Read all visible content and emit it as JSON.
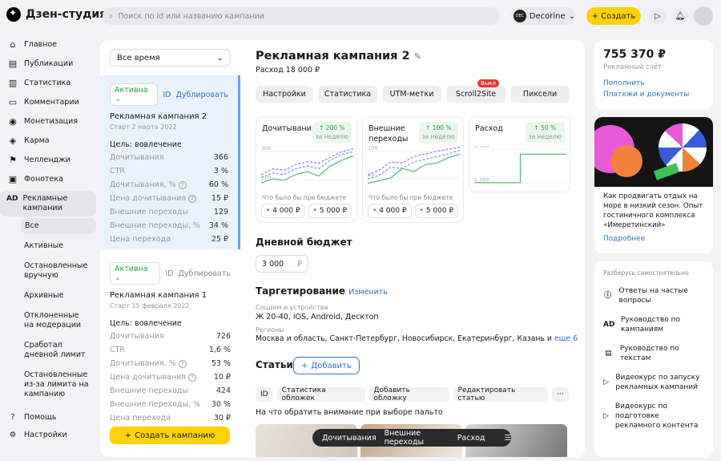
{
  "header": {
    "logo": "Дзен-студия",
    "search_placeholder": "Поиск по id или названию кампании",
    "account": "Decorine",
    "account_avatar": "DEC",
    "create": "Создать"
  },
  "nav": {
    "items": [
      {
        "icon": "home",
        "label": "Главное"
      },
      {
        "icon": "publications",
        "label": "Публикации"
      },
      {
        "icon": "stats",
        "label": "Статистика"
      },
      {
        "icon": "comments",
        "label": "Комментарии"
      },
      {
        "icon": "money",
        "label": "Монетизация"
      },
      {
        "icon": "karma",
        "label": "Карма"
      },
      {
        "icon": "flag",
        "label": "Челленджи"
      },
      {
        "icon": "music",
        "label": "Фонотека"
      },
      {
        "icon": "ad",
        "label": "Рекламные кампании"
      }
    ],
    "sub": [
      "Все",
      "Активные",
      "Остановленные вручную",
      "Архивные",
      "Отклоненные на модерации",
      "Сработал дневной лимит",
      "Остановленные из-за лимита на кампанию"
    ],
    "bottom": [
      {
        "icon": "help",
        "label": "Помощь"
      },
      {
        "icon": "settings",
        "label": "Настройки"
      }
    ]
  },
  "list": {
    "period": "Все время",
    "add_label": "Создать кампанию",
    "campaigns": [
      {
        "status": "Активна",
        "id": "ID",
        "dup": "Дублировать",
        "name": "Рекламная кампания 2",
        "start": "Старт 2 марта 2022",
        "goal": "Цель: вовлечение",
        "metrics": [
          [
            "Дочитывания",
            "366"
          ],
          [
            "CTR",
            "3 %"
          ],
          [
            "Дочитывания, %",
            "60 %"
          ],
          [
            "Цена дочитывания",
            "15 ₽"
          ],
          [
            "Внешние переходы",
            "129"
          ],
          [
            "Внешние переходы, %",
            "34 %"
          ],
          [
            "Цена перехода",
            "25 ₽"
          ]
        ]
      },
      {
        "status": "Активна",
        "id": "ID",
        "dup": "Дублировать",
        "name": "Рекламная кампания 1",
        "start": "Старт 15 февраля 2022",
        "goal": "Цель: вовлечение",
        "metrics": [
          [
            "Дочитывания",
            "726"
          ],
          [
            "CTR",
            "1,6 %"
          ],
          [
            "Дочитывания, %",
            "53 %"
          ],
          [
            "Цена дочитывания",
            "10 ₽"
          ],
          [
            "Внешние переходы",
            "424"
          ],
          [
            "Внешние переходы, %",
            "30 %"
          ],
          [
            "Цена перехода",
            "30 ₽"
          ]
        ]
      }
    ]
  },
  "main": {
    "title": "Рекламная кампания 2",
    "spend": "Расход 18 000 ₽",
    "tabs": [
      "Настройки",
      "Статистика",
      "UTM-метки",
      "Scroll2Site",
      "Пиксели"
    ],
    "tab_badge": "Выкл",
    "budget_title": "Дневной бюджет",
    "budget_value": "3 000",
    "currency": "₽",
    "targeting_title": "Таргетирование",
    "targeting_edit": "Изменить",
    "devices_label": "Соцдем и устройства",
    "devices": "Ж 20-40, iOS, Android, Десктоп",
    "regions_label": "Регионы",
    "regions": "Москва и область, Санкт-Петербург, Новосибирск, Екатеринбург, Казань и",
    "regions_more": "еще 6",
    "articles_title": "Статьи",
    "add_article": "Добавить",
    "article_tools": [
      "ID",
      "Статистика обложек",
      "Добавить обложку",
      "Редактировать статью"
    ],
    "article_title": "На что обратить внимание при выборе пальто",
    "float_bar": [
      "Дочитывания",
      "Внешние переходы",
      "Расход"
    ]
  },
  "chart_data": [
    {
      "type": "line",
      "title": "Дочитывания",
      "growth": "200 %",
      "period": "за неделю",
      "yticks": [
        "300",
        "100"
      ],
      "ylim": [
        60,
        340
      ],
      "series": [
        {
          "style": "solid",
          "color": "#5cbf78",
          "values": [
            80,
            110,
            100,
            140,
            160,
            130,
            200,
            240,
            270
          ]
        },
        {
          "style": "dashed",
          "color": "#7c9fd9",
          "values": [
            120,
            150,
            140,
            180,
            200,
            180,
            240,
            280,
            300
          ]
        },
        {
          "style": "dashed",
          "color": "#a97fd6",
          "values": [
            140,
            180,
            170,
            210,
            230,
            220,
            260,
            300,
            320
          ]
        }
      ],
      "budget_label": "Что было бы при бюджете",
      "budgets": [
        "4 000 ₽",
        "5 000 ₽"
      ]
    },
    {
      "type": "line",
      "title": "Внешние переходы",
      "growth": "100 %",
      "period": "за неделю",
      "yticks": [
        "100",
        "50"
      ],
      "ylim": [
        35,
        110
      ],
      "series": [
        {
          "style": "solid",
          "color": "#5cbf78",
          "values": [
            40,
            45,
            50,
            68,
            62,
            75,
            78,
            88,
            95
          ]
        },
        {
          "style": "dashed",
          "color": "#7c9fd9",
          "values": [
            48,
            55,
            70,
            68,
            80,
            85,
            90,
            95,
            102
          ]
        },
        {
          "style": "dashed",
          "color": "#a97fd6",
          "values": [
            55,
            65,
            80,
            78,
            90,
            95,
            100,
            104,
            107
          ]
        }
      ],
      "budget_label": "Что было бы при бюджете",
      "budgets": [
        "4 000 ₽",
        "5 000 ₽"
      ]
    },
    {
      "type": "line",
      "title": "Расход",
      "growth": "50 %",
      "period": "за неделю",
      "yticks": [
        "3 000",
        "2 000"
      ],
      "ylim": [
        1900,
        3100
      ],
      "series": [
        {
          "style": "step",
          "color": "#5cbf78",
          "values": [
            2000,
            2000,
            2000,
            2000,
            2850,
            2850,
            2850,
            2850,
            2850
          ]
        }
      ]
    }
  ],
  "right": {
    "balance": "755 370 ₽",
    "balance_label": "Рекламный счёт",
    "topup": "Пополнить",
    "docs": "Платежи и документы",
    "promo_text": "Как продвигать отдых на море в низкий сезон. Опыт гостиничного комплекса «Имеретинский»",
    "promo_more": "Подробнее",
    "help_title": "Разберусь самостоятельно",
    "help": [
      {
        "icon": "info",
        "label": "Ответы на частые вопросы"
      },
      {
        "icon": "ad",
        "label": "Руководство по кампаниям"
      },
      {
        "icon": "doc",
        "label": "Руководство по текстам"
      },
      {
        "icon": "play",
        "label": "Видеокурс по запуску рекламных кампаний"
      },
      {
        "icon": "play",
        "label": "Видеокурс по подготовке рекламного контента"
      }
    ]
  },
  "colors": {
    "accent": "#fcd20a",
    "link": "#2e6fd8",
    "positive": "#2a9d46"
  }
}
